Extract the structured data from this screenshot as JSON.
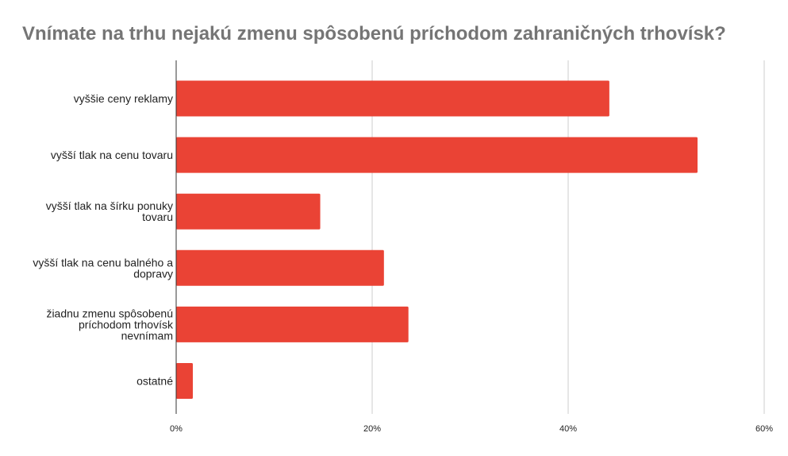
{
  "chart_data": {
    "type": "bar",
    "orientation": "horizontal",
    "title": "Vnímate na trhu nejakú zmenu spôsobenú príchodom zahraničných trhovísk?",
    "categories": [
      "vyššie ceny reklamy",
      "vyšší tlak na cenu tovaru",
      "vyšší tlak na šírku ponuky tovaru",
      "vyšší tlak na cenu balného a dopravy",
      "žiadnu zmenu spôsobenú príchodom trhovísk nevnímam",
      "ostatné"
    ],
    "category_lines": [
      [
        "vyššie ceny reklamy"
      ],
      [
        "vyšší tlak na cenu tovaru"
      ],
      [
        "vyšší tlak na šírku ponuky",
        "tovaru"
      ],
      [
        "vyšší tlak na cenu balného a",
        "dopravy"
      ],
      [
        "žiadnu zmenu spôsobenú",
        "príchodom trhovísk",
        "nevnímam"
      ],
      [
        "ostatné"
      ]
    ],
    "values": [
      44.2,
      53.2,
      14.7,
      21.2,
      23.7,
      1.7
    ],
    "xlim": [
      0,
      60
    ],
    "xticks": [
      0,
      20,
      40,
      60
    ],
    "xtick_labels": [
      "0%",
      "20%",
      "40%",
      "60%"
    ],
    "grid": true,
    "bar_color": "#ea4335",
    "grid_color": "#cccccc",
    "axis_color": "#333333"
  }
}
